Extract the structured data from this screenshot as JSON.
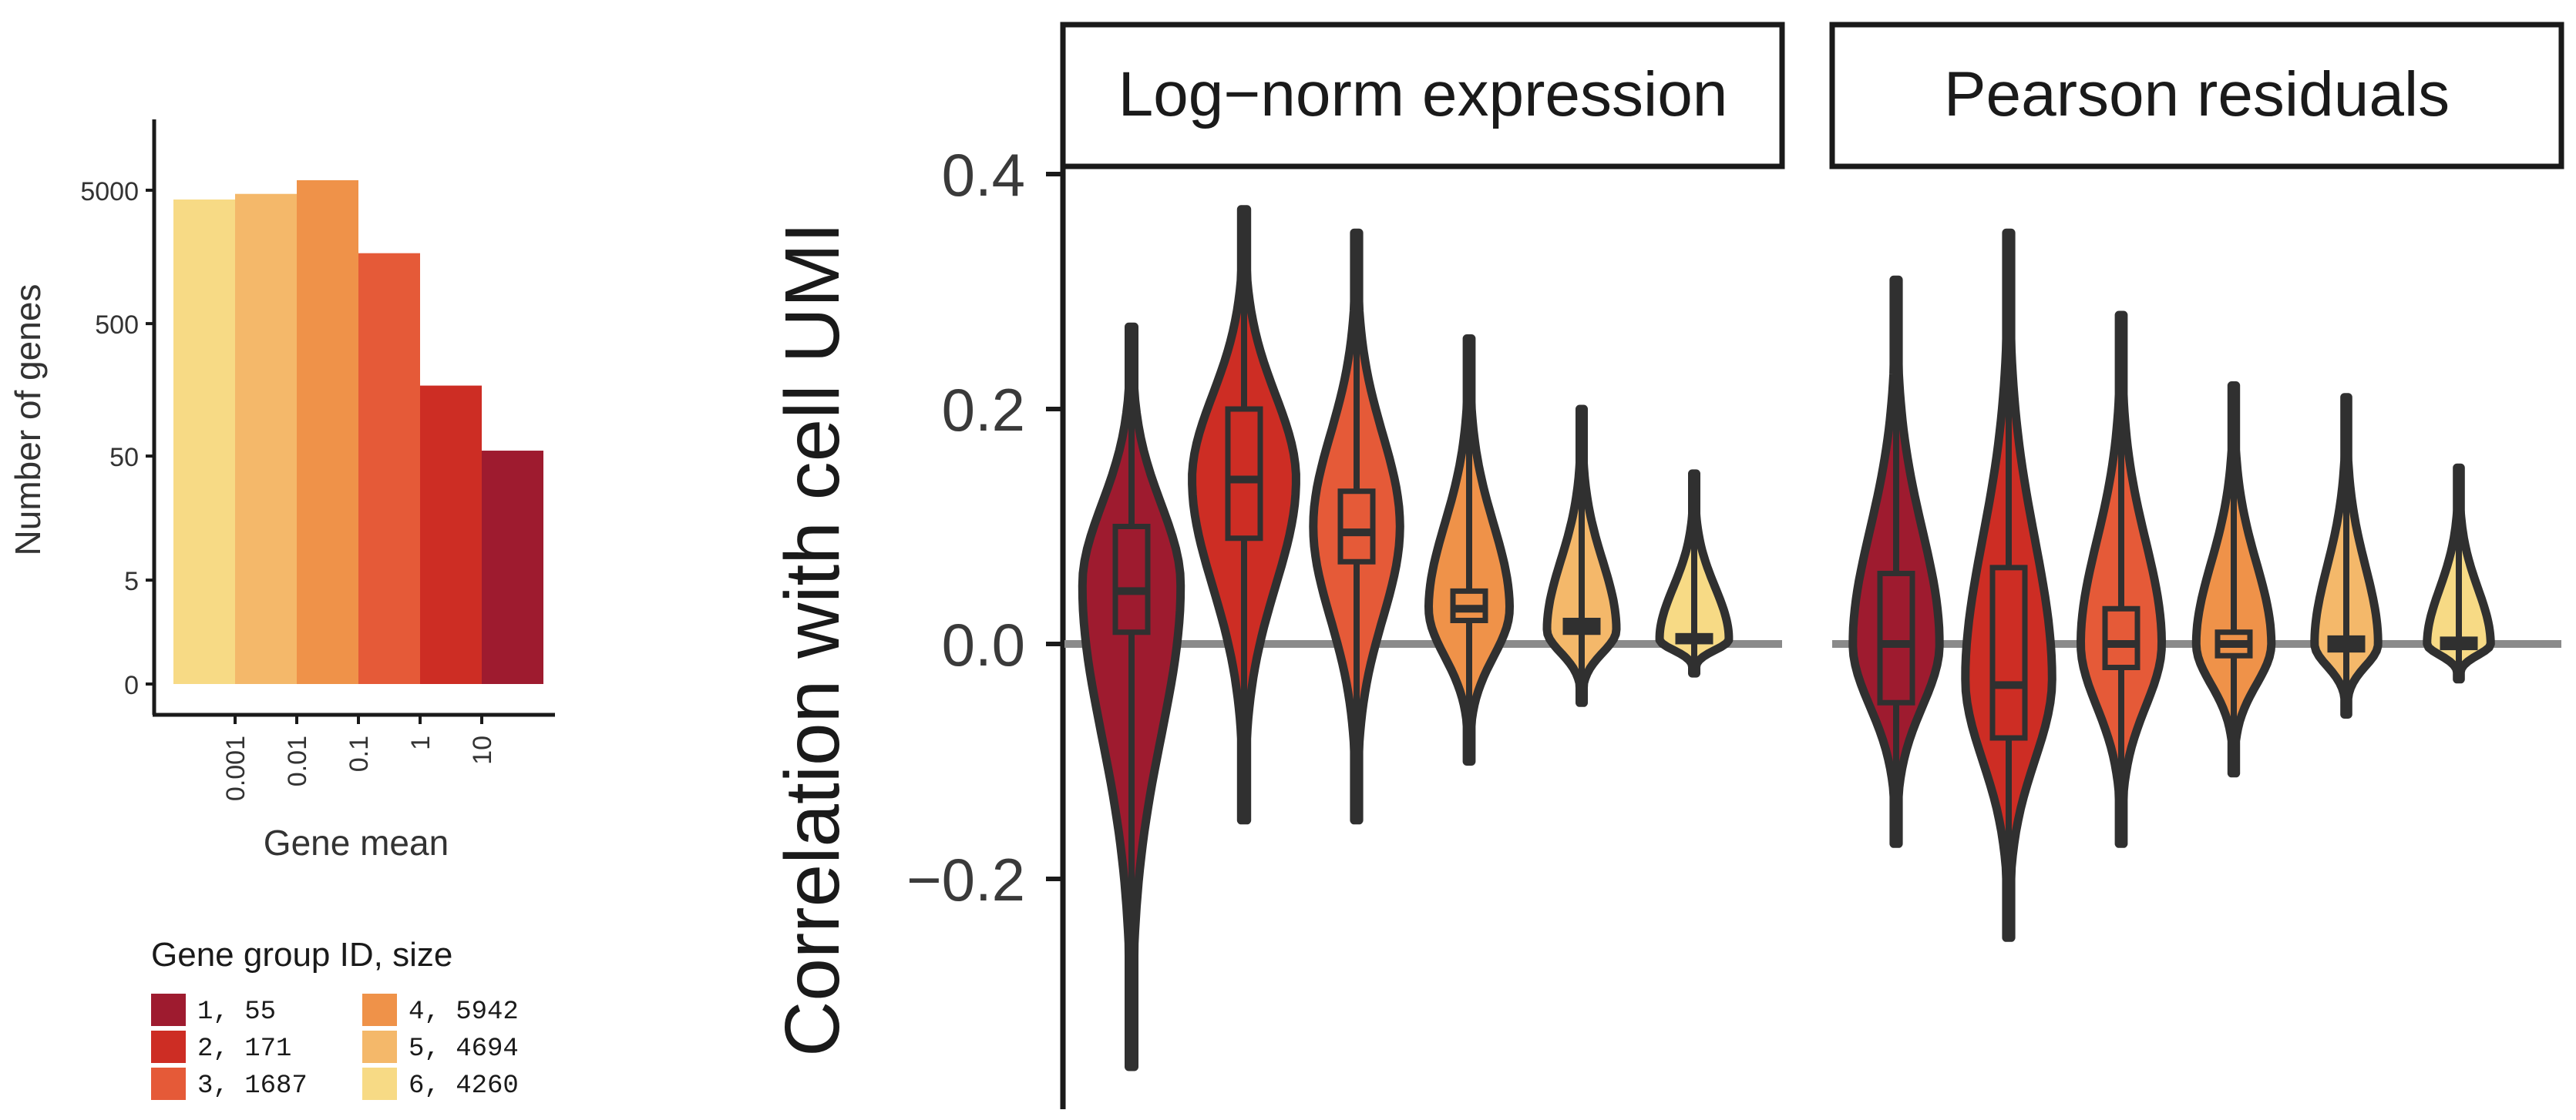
{
  "colors": {
    "group1": "#9e1b2f",
    "group2": "#cd2d24",
    "group3": "#e55a38",
    "group4": "#ef9249",
    "group5": "#f4b86a",
    "group6": "#f7da85",
    "outline": "#303030",
    "zero_line": "#8a8a8a"
  },
  "legend": {
    "title": "Gene group ID, size",
    "items": [
      {
        "label": "1,   55",
        "color": "#9e1b2f"
      },
      {
        "label": "2,  171",
        "color": "#cd2d24"
      },
      {
        "label": "3, 1687",
        "color": "#e55a38"
      },
      {
        "label": "4, 5942",
        "color": "#ef9249"
      },
      {
        "label": "5, 4694",
        "color": "#f4b86a"
      },
      {
        "label": "6, 4260",
        "color": "#f7da85"
      }
    ]
  },
  "chart_data": [
    {
      "type": "bar",
      "xlabel": "Gene mean",
      "ylabel": "Number of genes",
      "x_scale": "log",
      "y_scale": "pseudo-log",
      "x_tick_labels": [
        "0.001",
        "0.01",
        "0.1",
        "1",
        "10"
      ],
      "y_tick_labels": [
        "0",
        "5",
        "50",
        "500",
        "5000"
      ],
      "y_tick_values": [
        0,
        5,
        50,
        500,
        5000
      ],
      "grid": false,
      "bars": [
        {
          "group": 6,
          "value": 4260,
          "color": "#f7da85"
        },
        {
          "group": 5,
          "value": 4694,
          "color": "#f4b86a"
        },
        {
          "group": 4,
          "value": 5942,
          "color": "#ef9249"
        },
        {
          "group": 3,
          "value": 1687,
          "color": "#e55a38"
        },
        {
          "group": 2,
          "value": 171,
          "color": "#cd2d24"
        },
        {
          "group": 1,
          "value": 55,
          "color": "#9e1b2f"
        }
      ]
    },
    {
      "type": "violin",
      "ylabel": "Correlation with cell UMI",
      "y_tick_labels": [
        "0.4",
        "0.2",
        "0.0",
        "−0.2"
      ],
      "y_tick_values": [
        0.4,
        0.2,
        0.0,
        -0.2
      ],
      "ylim": [
        -0.39,
        0.42
      ],
      "grid": false,
      "panels": [
        {
          "title": "Log−norm expression",
          "violins": [
            {
              "group": 1,
              "color": "#9e1b2f",
              "min": -0.36,
              "max": 0.27,
              "q1": 0.01,
              "median": 0.045,
              "q3": 0.1,
              "mode": 0.05,
              "width_scale": 0.85
            },
            {
              "group": 2,
              "color": "#cd2d24",
              "min": -0.15,
              "max": 0.37,
              "q1": 0.09,
              "median": 0.14,
              "q3": 0.2,
              "mode": 0.14,
              "width_scale": 0.9
            },
            {
              "group": 3,
              "color": "#e55a38",
              "min": -0.15,
              "max": 0.35,
              "q1": 0.07,
              "median": 0.095,
              "q3": 0.13,
              "mode": 0.1,
              "width_scale": 0.75
            },
            {
              "group": 4,
              "color": "#ef9249",
              "min": -0.1,
              "max": 0.26,
              "q1": 0.02,
              "median": 0.03,
              "q3": 0.045,
              "mode": 0.03,
              "width_scale": 0.7
            },
            {
              "group": 5,
              "color": "#f4b86a",
              "min": -0.05,
              "max": 0.2,
              "q1": 0.01,
              "median": 0.015,
              "q3": 0.02,
              "mode": 0.012,
              "width_scale": 0.6
            },
            {
              "group": 6,
              "color": "#f7da85",
              "min": -0.025,
              "max": 0.145,
              "q1": 0.002,
              "median": 0.004,
              "q3": 0.007,
              "mode": 0.004,
              "width_scale": 0.6
            }
          ]
        },
        {
          "title": "Pearson residuals",
          "violins": [
            {
              "group": 1,
              "color": "#9e1b2f",
              "min": -0.17,
              "max": 0.31,
              "q1": -0.05,
              "median": 0.0,
              "q3": 0.06,
              "mode": 0.0,
              "width_scale": 0.75
            },
            {
              "group": 2,
              "color": "#cd2d24",
              "min": -0.25,
              "max": 0.35,
              "q1": -0.08,
              "median": -0.035,
              "q3": 0.065,
              "mode": -0.03,
              "width_scale": 0.75
            },
            {
              "group": 3,
              "color": "#e55a38",
              "min": -0.17,
              "max": 0.28,
              "q1": -0.02,
              "median": 0.0,
              "q3": 0.03,
              "mode": 0.0,
              "width_scale": 0.7
            },
            {
              "group": 4,
              "color": "#ef9249",
              "min": -0.11,
              "max": 0.22,
              "q1": -0.01,
              "median": 0.0,
              "q3": 0.01,
              "mode": 0.0,
              "width_scale": 0.65
            },
            {
              "group": 5,
              "color": "#f4b86a",
              "min": -0.06,
              "max": 0.21,
              "q1": -0.005,
              "median": 0.0,
              "q3": 0.005,
              "mode": 0.0,
              "width_scale": 0.55
            },
            {
              "group": 6,
              "color": "#f7da85",
              "min": -0.03,
              "max": 0.15,
              "q1": -0.003,
              "median": 0.0,
              "q3": 0.004,
              "mode": 0.0,
              "width_scale": 0.55
            }
          ]
        }
      ]
    }
  ]
}
